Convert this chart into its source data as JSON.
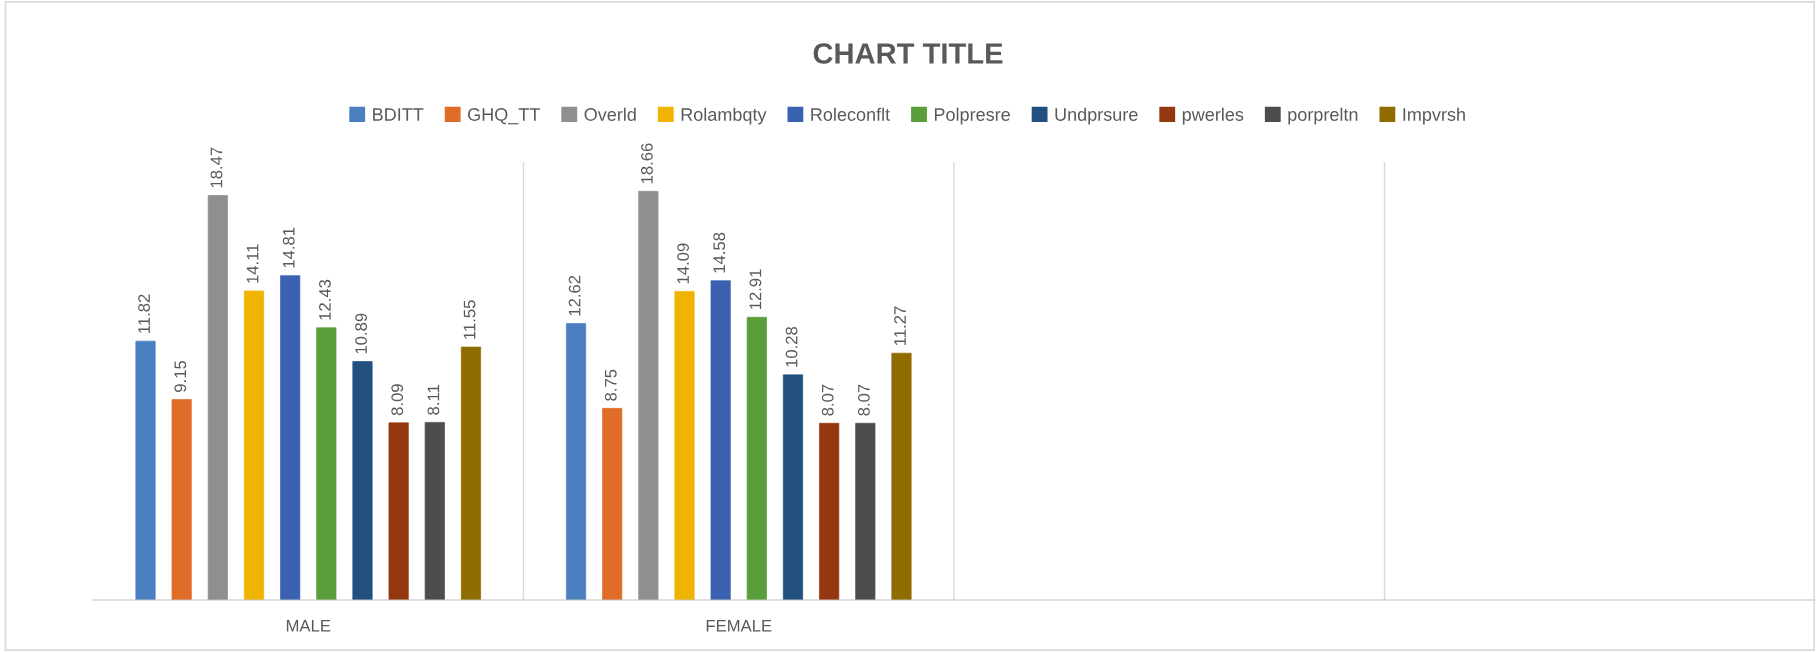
{
  "chart_data": {
    "type": "bar",
    "title": "CHART TITLE",
    "categories": [
      "MALE",
      "FEMALE",
      null,
      null
    ],
    "series": [
      {
        "name": "BDITT",
        "color": "#4a7fc0",
        "values": [
          11.82,
          12.62,
          null,
          null
        ]
      },
      {
        "name": "GHQ_TT",
        "color": "#e06c2a",
        "values": [
          9.15,
          8.75,
          null,
          null
        ]
      },
      {
        "name": "Overld",
        "color": "#8f8f8f",
        "values": [
          18.47,
          18.66,
          null,
          null
        ]
      },
      {
        "name": "Rolambqty",
        "color": "#f0b400",
        "values": [
          14.11,
          14.09,
          null,
          null
        ]
      },
      {
        "name": "Roleconflt",
        "color": "#3b62b0",
        "values": [
          14.81,
          14.58,
          null,
          null
        ]
      },
      {
        "name": "Polpresre",
        "color": "#5a9e3a",
        "values": [
          12.43,
          12.91,
          null,
          null
        ]
      },
      {
        "name": "Undprsure",
        "color": "#22507f",
        "values": [
          10.89,
          10.28,
          null,
          null
        ]
      },
      {
        "name": "pwerles",
        "color": "#94380f",
        "values": [
          8.09,
          8.07,
          null,
          null
        ]
      },
      {
        "name": "porpreltn",
        "color": "#4d4d4d",
        "values": [
          8.11,
          8.07,
          null,
          null
        ]
      },
      {
        "name": "Impvrsh",
        "color": "#8f6c00",
        "values": [
          11.55,
          11.27,
          null,
          null
        ]
      }
    ],
    "ylim": [
      0,
      20
    ],
    "tick_labels": "x",
    "data_labels": true,
    "grid": "x",
    "legend": "top"
  }
}
